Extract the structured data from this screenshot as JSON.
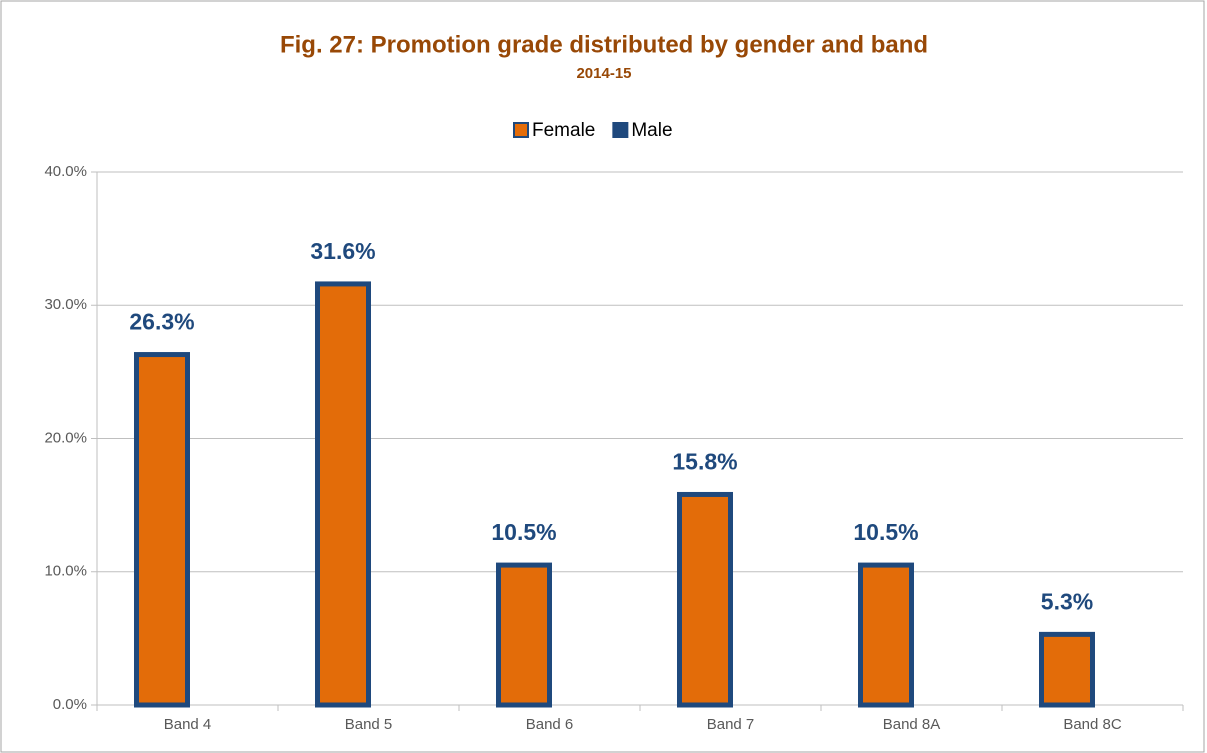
{
  "chart_data": {
    "type": "bar",
    "title": "Fig. 27: Promotion grade distributed by gender and band",
    "subtitle": "2014-15",
    "categories": [
      "Band 4",
      "Band 5",
      "Band 6",
      "Band 7",
      "Band 8A",
      "Band 8C"
    ],
    "series": [
      {
        "name": "Female",
        "color": "#e36c09",
        "values": [
          26.3,
          31.6,
          10.5,
          15.8,
          10.5,
          5.3
        ],
        "value_labels": [
          "26.3%",
          "31.6%",
          "10.5%",
          "15.8%",
          "10.5%",
          "5.3%"
        ]
      },
      {
        "name": "Male",
        "color": "#1f497d",
        "values": [
          null,
          null,
          null,
          null,
          null,
          null
        ]
      }
    ],
    "ylim": [
      0,
      40
    ],
    "yticks": [
      {
        "value": 0,
        "label": "0.0%"
      },
      {
        "value": 10,
        "label": "10.0%"
      },
      {
        "value": 20,
        "label": "20.0%"
      },
      {
        "value": 30,
        "label": "30.0%"
      },
      {
        "value": 40,
        "label": "40.0%"
      }
    ],
    "grid": true,
    "legend": "top"
  }
}
